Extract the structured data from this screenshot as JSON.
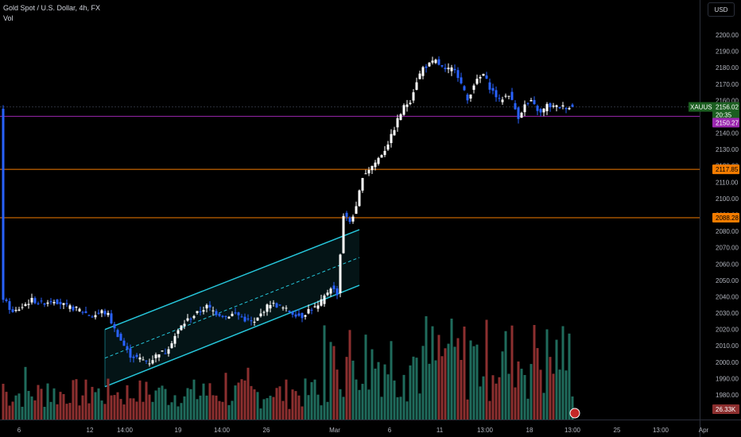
{
  "header": {
    "title": "Gold Spot / U.S. Dollar, 4h, FX",
    "vol_label": "Vol"
  },
  "currency_button": "USD",
  "colors": {
    "up": "#ffffff",
    "down": "#2962ff",
    "vol_up": "#1f6b5c",
    "vol_down": "#8c2f2f",
    "channel": "#26c6da",
    "support": "#f57c00",
    "price_line": "#9c27b0",
    "tag_green": "#1b5e20"
  },
  "tags": {
    "symbol": "XAUUSD",
    "price": "2156.02",
    "countdown": "20:35",
    "line1": "2150.27",
    "line2": "2117.85",
    "line3": "2088.28",
    "volume": "26.33K"
  },
  "chart_data": {
    "type": "candlestick",
    "y_axis": {
      "min": 1975,
      "max": 2205,
      "ticks": [
        "1980.00",
        "1990.00",
        "2000.00",
        "2010.00",
        "2020.00",
        "2030.00",
        "2040.00",
        "2050.00",
        "2060.00",
        "2070.00",
        "2080.00",
        "2090.00",
        "2100.00",
        "2110.00",
        "2120.00",
        "2130.00",
        "2140.00",
        "2150.00",
        "2160.00",
        "2170.00",
        "2180.00",
        "2190.00",
        "2200.00"
      ]
    },
    "x_ticks": [
      "6",
      "12",
      "14:00",
      "19",
      "14:00",
      "26",
      "Mar",
      "6",
      "11",
      "13:00",
      "18",
      "13:00",
      "25",
      "13:00",
      "Apr"
    ],
    "horizontal_lines": [
      2150.27,
      2117.85,
      2088.28
    ],
    "channel": {
      "lower_start": 1985,
      "lower_end": 2047,
      "upper_start": 2020,
      "upper_end": 2081
    },
    "candles_count": 180,
    "close_path": [
      [
        0,
        2039
      ],
      [
        3,
        2030
      ],
      [
        6,
        2034
      ],
      [
        9,
        2038
      ],
      [
        12,
        2036
      ],
      [
        16,
        2038
      ],
      [
        20,
        2034
      ],
      [
        24,
        2032
      ],
      [
        28,
        2028
      ],
      [
        31,
        2031
      ],
      [
        33,
        2029
      ],
      [
        35,
        2020
      ],
      [
        38,
        2010
      ],
      [
        40,
        2004
      ],
      [
        43,
        2002
      ],
      [
        46,
        2000
      ],
      [
        49,
        2006
      ],
      [
        51,
        2006
      ],
      [
        54,
        2016
      ],
      [
        56,
        2022
      ],
      [
        58,
        2026
      ],
      [
        61,
        2030
      ],
      [
        64,
        2034
      ],
      [
        67,
        2030
      ],
      [
        70,
        2028
      ],
      [
        73,
        2030
      ],
      [
        76,
        2026
      ],
      [
        79,
        2024
      ],
      [
        82,
        2032
      ],
      [
        84,
        2036
      ],
      [
        87,
        2034
      ],
      [
        91,
        2030
      ],
      [
        94,
        2028
      ],
      [
        96,
        2032
      ],
      [
        99,
        2034
      ],
      [
        103,
        2046
      ],
      [
        105,
        2042
      ],
      [
        107,
        2090
      ],
      [
        109,
        2086
      ],
      [
        111,
        2094
      ],
      [
        113,
        2114
      ],
      [
        115,
        2118
      ],
      [
        117,
        2122
      ],
      [
        120,
        2130
      ],
      [
        122,
        2138
      ],
      [
        124,
        2148
      ],
      [
        126,
        2156
      ],
      [
        128,
        2160
      ],
      [
        130,
        2172
      ],
      [
        132,
        2180
      ],
      [
        134,
        2182
      ],
      [
        136,
        2184
      ],
      [
        139,
        2178
      ],
      [
        142,
        2180
      ],
      [
        144,
        2170
      ],
      [
        146,
        2160
      ],
      [
        148,
        2170
      ],
      [
        151,
        2176
      ],
      [
        153,
        2168
      ],
      [
        156,
        2160
      ],
      [
        159,
        2164
      ],
      [
        162,
        2150
      ],
      [
        164,
        2157
      ],
      [
        166,
        2159
      ],
      [
        169,
        2152
      ],
      [
        171,
        2157
      ],
      [
        173,
        2156
      ]
    ],
    "volume_scale_max": 100
  }
}
